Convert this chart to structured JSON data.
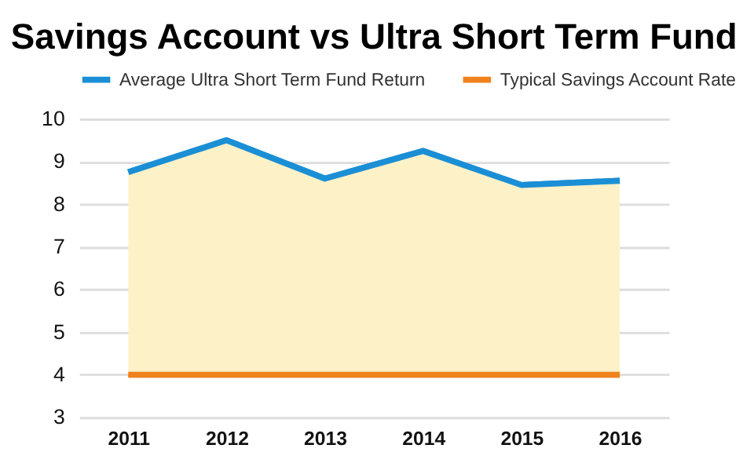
{
  "chart_data": {
    "type": "line",
    "title": "Savings Account vs Ultra Short Term Fund",
    "categories": [
      "2011",
      "2012",
      "2013",
      "2014",
      "2015",
      "2016"
    ],
    "series": [
      {
        "name": "Average Ultra Short Term Fund Return",
        "color": "#1b8fd5",
        "values": [
          8.75,
          9.5,
          8.6,
          9.25,
          8.45,
          8.55
        ],
        "lower": [
          4,
          4,
          4,
          4,
          4,
          4
        ],
        "upper": [
          8.75,
          9.5,
          8.6,
          9.25,
          8.45,
          8.55
        ]
      },
      {
        "name": "Typical Savings Account Rate",
        "color": "#f0821e",
        "values": [
          4,
          4,
          4,
          4,
          4,
          4
        ]
      }
    ],
    "ylim": [
      3,
      10
    ],
    "yticks": [
      3,
      4,
      5,
      6,
      7,
      8,
      9,
      10
    ],
    "grid": "y",
    "legend": "top",
    "marker": "none",
    "line_style": "solid"
  }
}
